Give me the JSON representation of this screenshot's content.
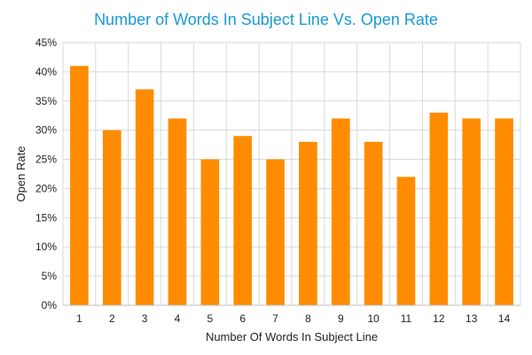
{
  "chart_data": {
    "type": "bar",
    "title": "Number of Words In Subject Line Vs. Open Rate",
    "xlabel": "Number Of Words In Subject Line",
    "ylabel": "Open Rate",
    "categories": [
      "1",
      "2",
      "3",
      "4",
      "5",
      "6",
      "7",
      "8",
      "9",
      "10",
      "11",
      "12",
      "13",
      "14"
    ],
    "values": [
      41,
      30,
      37,
      32,
      25,
      29,
      25,
      28,
      32,
      28,
      22,
      33,
      32,
      32
    ],
    "ylim": [
      0,
      45
    ],
    "ytick_step": 5,
    "y_tick_format": "percent",
    "grid": true,
    "legend": "none",
    "colors": {
      "bar": "#ff8c00",
      "title": "#1a9ad6",
      "grid": "#d9d9d9"
    }
  }
}
